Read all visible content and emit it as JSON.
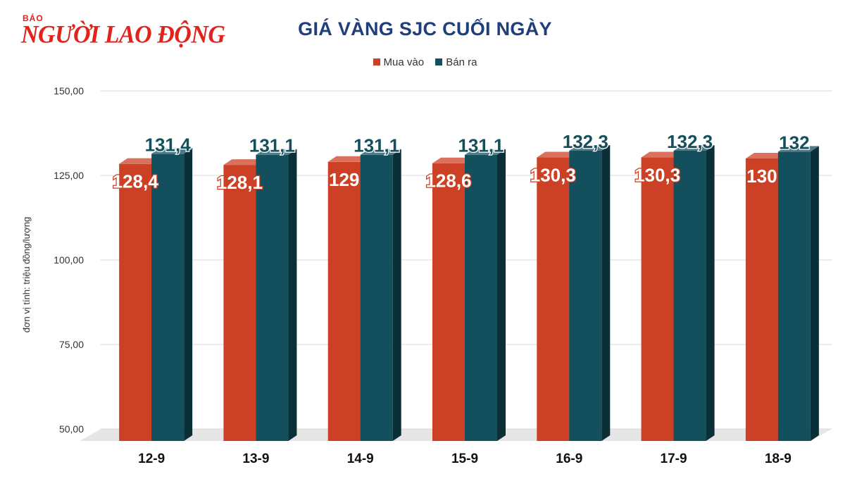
{
  "logo": {
    "prefix": "BÁO",
    "name": "NGƯỜI LAO ĐỘNG"
  },
  "chart_data": {
    "type": "bar",
    "title": "GIÁ VÀNG SJC CUỐI NGÀY",
    "ylabel": "đơn vị tính: triệu đồng/lượng",
    "xlabel": "",
    "categories": [
      "12-9",
      "13-9",
      "14-9",
      "15-9",
      "16-9",
      "17-9",
      "18-9"
    ],
    "series": [
      {
        "name": "Mua vào",
        "color": "#cc4125",
        "values": [
          128.4,
          128.1,
          129,
          128.6,
          130.3,
          130.3,
          130
        ],
        "labels": [
          "128,4",
          "128,1",
          "129",
          "128,6",
          "130,3",
          "130,3",
          "130"
        ]
      },
      {
        "name": "Bán ra",
        "color": "#134f5c",
        "values": [
          131.4,
          131.1,
          131.1,
          131.1,
          132.3,
          132.3,
          132
        ],
        "labels": [
          "131,4",
          "131,1",
          "131,1",
          "131,1",
          "132,3",
          "132,3",
          "132"
        ]
      }
    ],
    "ylim": [
      50,
      150
    ],
    "yticks": [
      "50,00",
      "75,00",
      "100,00",
      "125,00",
      "150,00"
    ],
    "ytick_values": [
      50,
      75,
      100,
      125,
      150
    ],
    "grid": true,
    "legend_position": "top-center"
  }
}
